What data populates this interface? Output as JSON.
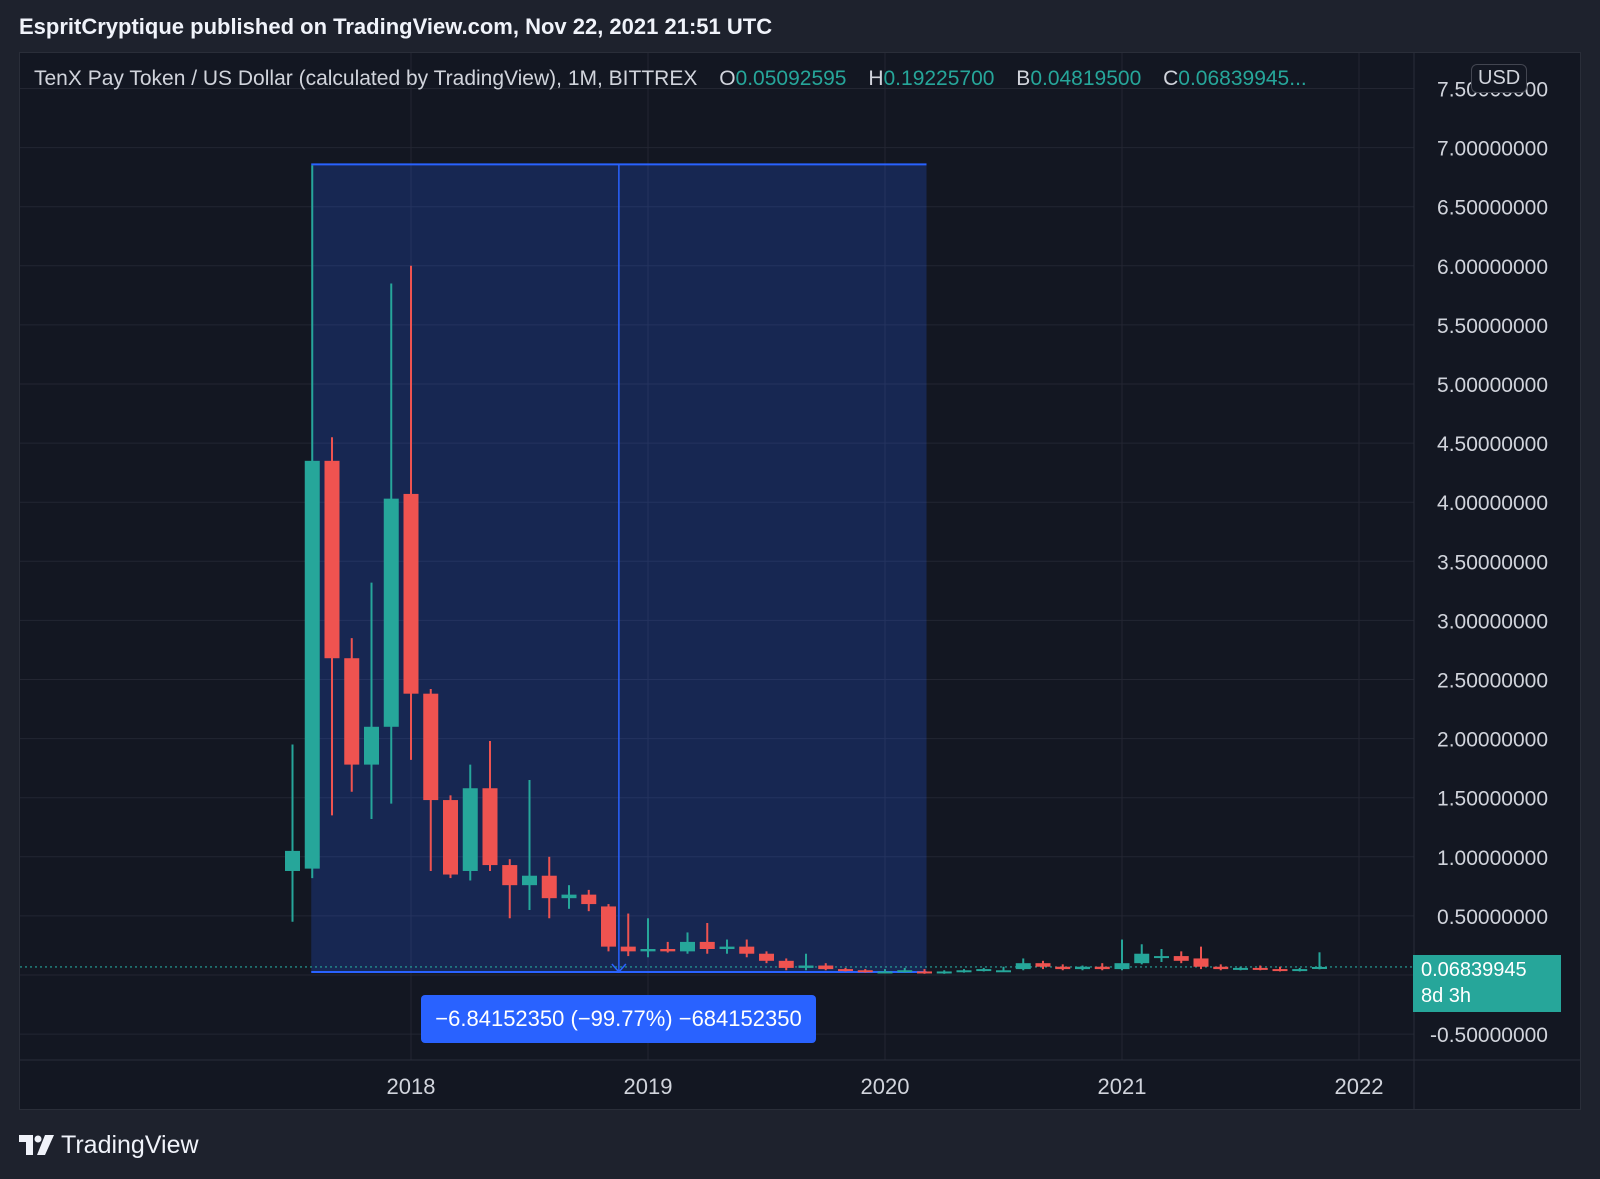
{
  "header": {
    "text": "EspritCryptique published on TradingView.com, Nov 22, 2021 21:51 UTC"
  },
  "legend": {
    "title": "TenX Pay Token / US Dollar (calculated by TradingView), 1M, BITTREX",
    "open_key": "O",
    "open": "0.05092595",
    "high_key": "H",
    "high": "0.19225700",
    "low_key": "B",
    "low": "0.04819500",
    "close_key": "C",
    "close": "0.06839945..."
  },
  "currency_badge": "USD",
  "last_price": {
    "value": "0.06839945",
    "countdown": "8d 3h"
  },
  "measure": {
    "label": "−6.84152350 (−99.77%) −684152350"
  },
  "footer": {
    "brand": "TradingView"
  },
  "colors": {
    "up": "#26a69a",
    "down": "#ef5350",
    "measure": "#2962ff",
    "background": "#131722"
  },
  "chart_data": {
    "type": "candlestick",
    "title": "TenX Pay Token / US Dollar (calculated by TradingView), 1M, BITTREX",
    "interval": "1M",
    "y_ticks": [
      "7.50000000",
      "7.00000000",
      "6.50000000",
      "6.00000000",
      "5.50000000",
      "5.00000000",
      "4.50000000",
      "4.00000000",
      "3.50000000",
      "3.00000000",
      "2.50000000",
      "2.00000000",
      "1.50000000",
      "1.00000000",
      "0.50000000",
      "-0.50000000"
    ],
    "x_ticks": [
      "2018",
      "2019",
      "2020",
      "2021",
      "2022"
    ],
    "ylim": [
      -0.5,
      7.5
    ],
    "candles": [
      {
        "date": "2017-07",
        "o": 0.88,
        "h": 1.95,
        "l": 0.45,
        "c": 1.05
      },
      {
        "date": "2017-08",
        "o": 0.9,
        "h": 6.85,
        "l": 0.82,
        "c": 4.35
      },
      {
        "date": "2017-09",
        "o": 4.35,
        "h": 4.55,
        "l": 1.35,
        "c": 2.68
      },
      {
        "date": "2017-10",
        "o": 2.68,
        "h": 2.85,
        "l": 1.55,
        "c": 1.78
      },
      {
        "date": "2017-11",
        "o": 1.78,
        "h": 3.32,
        "l": 1.32,
        "c": 2.1
      },
      {
        "date": "2017-12",
        "o": 2.1,
        "h": 5.85,
        "l": 1.45,
        "c": 4.03
      },
      {
        "date": "2018-01",
        "o": 4.07,
        "h": 6.0,
        "l": 1.82,
        "c": 2.38
      },
      {
        "date": "2018-02",
        "o": 2.38,
        "h": 2.42,
        "l": 0.88,
        "c": 1.48
      },
      {
        "date": "2018-03",
        "o": 1.48,
        "h": 1.52,
        "l": 0.82,
        "c": 0.85
      },
      {
        "date": "2018-04",
        "o": 0.88,
        "h": 1.78,
        "l": 0.8,
        "c": 1.58
      },
      {
        "date": "2018-05",
        "o": 1.58,
        "h": 1.98,
        "l": 0.88,
        "c": 0.93
      },
      {
        "date": "2018-06",
        "o": 0.93,
        "h": 0.98,
        "l": 0.48,
        "c": 0.76
      },
      {
        "date": "2018-07",
        "o": 0.76,
        "h": 1.65,
        "l": 0.55,
        "c": 0.84
      },
      {
        "date": "2018-08",
        "o": 0.84,
        "h": 1.0,
        "l": 0.48,
        "c": 0.65
      },
      {
        "date": "2018-09",
        "o": 0.65,
        "h": 0.76,
        "l": 0.56,
        "c": 0.68
      },
      {
        "date": "2018-10",
        "o": 0.68,
        "h": 0.72,
        "l": 0.54,
        "c": 0.6
      },
      {
        "date": "2018-11",
        "o": 0.58,
        "h": 0.6,
        "l": 0.2,
        "c": 0.24
      },
      {
        "date": "2018-12",
        "o": 0.24,
        "h": 0.52,
        "l": 0.16,
        "c": 0.2
      },
      {
        "date": "2019-01",
        "o": 0.2,
        "h": 0.48,
        "l": 0.15,
        "c": 0.22
      },
      {
        "date": "2019-02",
        "o": 0.22,
        "h": 0.28,
        "l": 0.19,
        "c": 0.2
      },
      {
        "date": "2019-03",
        "o": 0.2,
        "h": 0.36,
        "l": 0.18,
        "c": 0.28
      },
      {
        "date": "2019-04",
        "o": 0.28,
        "h": 0.44,
        "l": 0.18,
        "c": 0.22
      },
      {
        "date": "2019-05",
        "o": 0.22,
        "h": 0.3,
        "l": 0.18,
        "c": 0.24
      },
      {
        "date": "2019-06",
        "o": 0.24,
        "h": 0.3,
        "l": 0.15,
        "c": 0.18
      },
      {
        "date": "2019-07",
        "o": 0.18,
        "h": 0.2,
        "l": 0.1,
        "c": 0.12
      },
      {
        "date": "2019-08",
        "o": 0.12,
        "h": 0.14,
        "l": 0.04,
        "c": 0.06
      },
      {
        "date": "2019-09",
        "o": 0.06,
        "h": 0.18,
        "l": 0.04,
        "c": 0.08
      },
      {
        "date": "2019-10",
        "o": 0.08,
        "h": 0.1,
        "l": 0.04,
        "c": 0.05
      },
      {
        "date": "2019-11",
        "o": 0.05,
        "h": 0.06,
        "l": 0.03,
        "c": 0.04
      },
      {
        "date": "2019-12",
        "o": 0.04,
        "h": 0.05,
        "l": 0.02,
        "c": 0.03
      },
      {
        "date": "2020-01",
        "o": 0.03,
        "h": 0.05,
        "l": 0.02,
        "c": 0.03
      },
      {
        "date": "2020-02",
        "o": 0.03,
        "h": 0.06,
        "l": 0.02,
        "c": 0.04
      },
      {
        "date": "2020-03",
        "o": 0.03,
        "h": 0.05,
        "l": 0.01,
        "c": 0.02
      },
      {
        "date": "2020-04",
        "o": 0.02,
        "h": 0.04,
        "l": 0.01,
        "c": 0.03
      },
      {
        "date": "2020-05",
        "o": 0.03,
        "h": 0.05,
        "l": 0.02,
        "c": 0.04
      },
      {
        "date": "2020-06",
        "o": 0.04,
        "h": 0.06,
        "l": 0.03,
        "c": 0.05
      },
      {
        "date": "2020-07",
        "o": 0.04,
        "h": 0.07,
        "l": 0.03,
        "c": 0.04
      },
      {
        "date": "2020-08",
        "o": 0.05,
        "h": 0.14,
        "l": 0.04,
        "c": 0.1
      },
      {
        "date": "2020-09",
        "o": 0.1,
        "h": 0.12,
        "l": 0.05,
        "c": 0.07
      },
      {
        "date": "2020-10",
        "o": 0.07,
        "h": 0.09,
        "l": 0.04,
        "c": 0.05
      },
      {
        "date": "2020-11",
        "o": 0.05,
        "h": 0.08,
        "l": 0.04,
        "c": 0.07
      },
      {
        "date": "2020-12",
        "o": 0.07,
        "h": 0.1,
        "l": 0.04,
        "c": 0.05
      },
      {
        "date": "2021-01",
        "o": 0.05,
        "h": 0.3,
        "l": 0.04,
        "c": 0.1
      },
      {
        "date": "2021-02",
        "o": 0.1,
        "h": 0.26,
        "l": 0.09,
        "c": 0.18
      },
      {
        "date": "2021-03",
        "o": 0.15,
        "h": 0.22,
        "l": 0.11,
        "c": 0.16
      },
      {
        "date": "2021-04",
        "o": 0.16,
        "h": 0.2,
        "l": 0.1,
        "c": 0.12
      },
      {
        "date": "2021-05",
        "o": 0.14,
        "h": 0.24,
        "l": 0.05,
        "c": 0.07
      },
      {
        "date": "2021-06",
        "o": 0.07,
        "h": 0.09,
        "l": 0.04,
        "c": 0.05
      },
      {
        "date": "2021-07",
        "o": 0.05,
        "h": 0.07,
        "l": 0.04,
        "c": 0.06
      },
      {
        "date": "2021-08",
        "o": 0.06,
        "h": 0.08,
        "l": 0.04,
        "c": 0.05
      },
      {
        "date": "2021-09",
        "o": 0.05,
        "h": 0.07,
        "l": 0.03,
        "c": 0.04
      },
      {
        "date": "2021-10",
        "o": 0.04,
        "h": 0.06,
        "l": 0.03,
        "c": 0.05
      },
      {
        "date": "2021-11",
        "o": 0.051,
        "h": 0.192,
        "l": 0.048,
        "c": 0.068
      }
    ],
    "last_price": 0.06839945,
    "measure": {
      "start_date": "2017-08",
      "end_date": "2020-03",
      "from_price": 6.85,
      "to_price": 0.0,
      "label": "−6.84152350 (−99.77%) −684152350"
    },
    "grid": true
  }
}
